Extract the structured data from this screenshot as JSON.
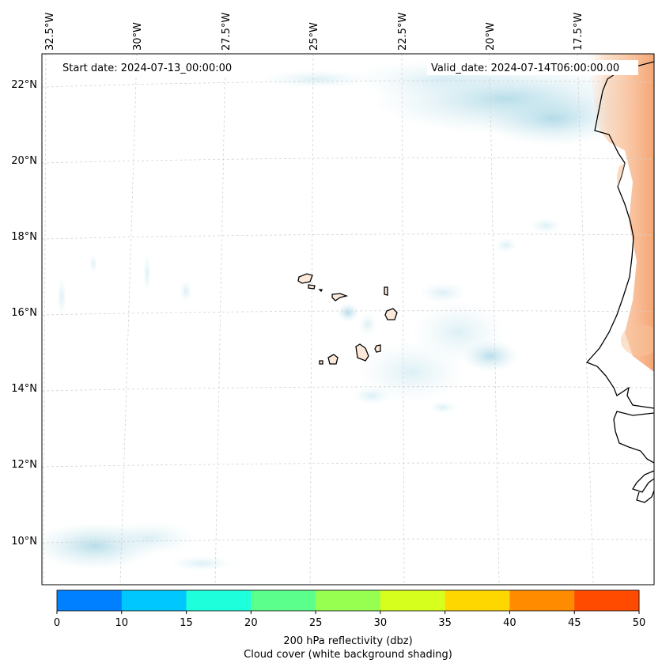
{
  "map": {
    "annotations": {
      "start_date": "Start date: 2024-07-13_00:00:00",
      "valid_date": "Valid_date: 2024-07-14T06:00:00.00"
    },
    "lon_labels": [
      "32.5°W",
      "30°W",
      "27.5°W",
      "25°W",
      "22.5°W",
      "20°W",
      "17.5°W"
    ],
    "lat_labels": [
      "22°N",
      "20°N",
      "18°N",
      "16°N",
      "14°N",
      "12°N",
      "10°N"
    ],
    "colors": {
      "cloud_shading": "#a9d8e6",
      "land_warm": "#f6a46a",
      "coastline": "#000000",
      "gridline": "#d0d0d0"
    }
  },
  "colorbar": {
    "ticks": [
      "0",
      "10",
      "15",
      "20",
      "25",
      "30",
      "35",
      "40",
      "45",
      "50"
    ],
    "colors": [
      "#0080ff",
      "#00c8ff",
      "#1effdc",
      "#5aff8c",
      "#96ff50",
      "#d7ff1e",
      "#ffd700",
      "#ff8c00",
      "#ff4b00"
    ],
    "label_line1": "200 hPa reflectivity (dbz)",
    "label_line2": "Cloud cover (white background shading)"
  }
}
